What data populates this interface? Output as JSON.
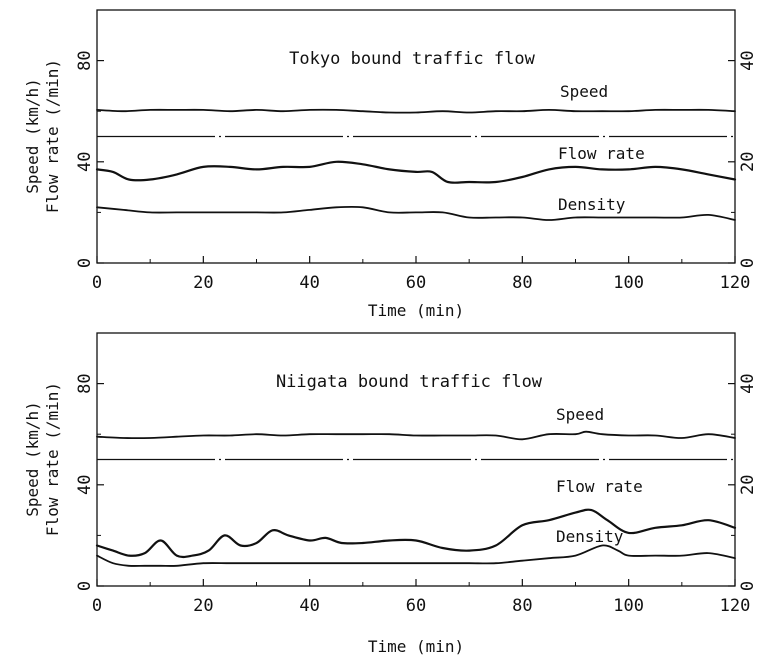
{
  "chart_data": [
    {
      "type": "line",
      "title": "Tokyo bound traffic flow",
      "xlabel": "Time (min)",
      "ylabel_speed": "Speed (km/h)",
      "ylabel_flow": "Flow rate (/min)",
      "xlim": [
        0,
        120
      ],
      "ylim_left": [
        0,
        100
      ],
      "ylim_right": [
        0,
        50
      ],
      "x_ticks": [
        0,
        20,
        40,
        60,
        80,
        100,
        120
      ],
      "y_ticks_left": [
        0,
        40,
        80
      ],
      "y_ticks_right": [
        0,
        20,
        40
      ],
      "reference_line": {
        "style": "dash-dot",
        "y_left": 50
      },
      "series": [
        {
          "name": "Speed",
          "axis": "left",
          "x": [
            0,
            5,
            10,
            15,
            20,
            25,
            30,
            35,
            40,
            45,
            50,
            55,
            60,
            65,
            70,
            75,
            80,
            85,
            90,
            95,
            100,
            105,
            110,
            115,
            120
          ],
          "values": [
            60.5,
            60,
            60.5,
            60.5,
            60.5,
            60,
            60.5,
            60,
            60.5,
            60.5,
            60,
            59.5,
            59.5,
            60,
            59.5,
            60,
            60,
            60.5,
            60,
            60,
            60,
            60.5,
            60.5,
            60.5,
            60
          ]
        },
        {
          "name": "Flow rate",
          "axis": "right",
          "x": [
            0,
            3,
            6,
            10,
            15,
            20,
            25,
            30,
            35,
            40,
            45,
            50,
            55,
            60,
            63,
            66,
            70,
            75,
            80,
            85,
            90,
            95,
            100,
            105,
            110,
            115,
            120
          ],
          "values": [
            18.5,
            18,
            16.5,
            16.5,
            17.5,
            19,
            19,
            18.5,
            19,
            19,
            20,
            19.5,
            18.5,
            18,
            18,
            16,
            16,
            16,
            17,
            18.5,
            19,
            18.5,
            18.5,
            19,
            18.5,
            17.5,
            16.5
          ]
        },
        {
          "name": "Density",
          "axis": "right",
          "x": [
            0,
            5,
            10,
            15,
            20,
            25,
            30,
            35,
            40,
            45,
            50,
            55,
            60,
            65,
            70,
            75,
            80,
            85,
            90,
            95,
            100,
            105,
            110,
            115,
            120
          ],
          "values": [
            11,
            10.5,
            10,
            10,
            10,
            10,
            10,
            10,
            10.5,
            11,
            11,
            10,
            10,
            10,
            9,
            9,
            9,
            8.5,
            9,
            9,
            9,
            9,
            9,
            9.5,
            8.5
          ]
        }
      ]
    },
    {
      "type": "line",
      "title": "Niigata bound traffic flow",
      "xlabel": "Time (min)",
      "ylabel_speed": "Speed (km/h)",
      "ylabel_flow": "Flow rate (/min)",
      "xlim": [
        0,
        120
      ],
      "ylim_left": [
        0,
        100
      ],
      "ylim_right": [
        0,
        50
      ],
      "x_ticks": [
        0,
        20,
        40,
        60,
        80,
        100,
        120
      ],
      "y_ticks_left": [
        0,
        40,
        80
      ],
      "y_ticks_right": [
        0,
        20,
        40
      ],
      "reference_line": {
        "style": "dash-dot",
        "y_left": 50
      },
      "series": [
        {
          "name": "Speed",
          "axis": "left",
          "x": [
            0,
            5,
            10,
            15,
            20,
            25,
            30,
            35,
            40,
            45,
            50,
            55,
            60,
            65,
            70,
            75,
            80,
            85,
            90,
            92,
            95,
            100,
            105,
            110,
            115,
            120
          ],
          "values": [
            59,
            58.5,
            58.5,
            59,
            59.5,
            59.5,
            60,
            59.5,
            60,
            60,
            60,
            60,
            59.5,
            59.5,
            59.5,
            59.5,
            58,
            60,
            60,
            61,
            60,
            59.5,
            59.5,
            58.5,
            60,
            58.5
          ]
        },
        {
          "name": "Flow rate",
          "axis": "right",
          "x": [
            0,
            3,
            6,
            9,
            12,
            15,
            18,
            21,
            24,
            27,
            30,
            33,
            36,
            40,
            43,
            46,
            50,
            55,
            60,
            65,
            70,
            75,
            80,
            85,
            90,
            93,
            96,
            100,
            105,
            110,
            115,
            120
          ],
          "values": [
            8,
            7,
            6,
            6.5,
            9,
            6,
            6,
            7,
            10,
            8,
            8.5,
            11,
            10,
            9,
            9.5,
            8.5,
            8.5,
            9,
            9,
            7.5,
            7,
            8,
            12,
            13,
            14.5,
            15,
            13,
            10.5,
            11.5,
            12,
            13,
            11.5
          ]
        },
        {
          "name": "Density",
          "axis": "right",
          "x": [
            0,
            3,
            6,
            9,
            12,
            15,
            20,
            25,
            30,
            35,
            40,
            45,
            50,
            55,
            60,
            65,
            70,
            75,
            80,
            85,
            90,
            95,
            98,
            100,
            105,
            110,
            115,
            120
          ],
          "values": [
            6,
            4.5,
            4,
            4,
            4,
            4,
            4.5,
            4.5,
            4.5,
            4.5,
            4.5,
            4.5,
            4.5,
            4.5,
            4.5,
            4.5,
            4.5,
            4.5,
            5,
            5.5,
            6,
            8,
            7,
            6,
            6,
            6,
            6.5,
            5.5
          ]
        }
      ]
    }
  ]
}
